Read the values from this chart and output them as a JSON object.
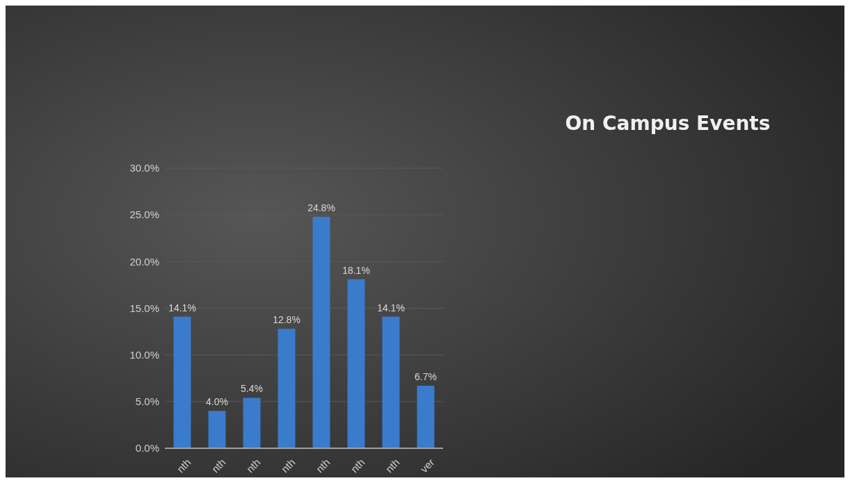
{
  "chart_data": {
    "type": "bar",
    "title": "On Campus Events",
    "categories": [
      "nth",
      "nth",
      "nth",
      "nth",
      "nth",
      "nth",
      "nth",
      "ver"
    ],
    "values": [
      14.1,
      4.0,
      5.4,
      12.8,
      24.8,
      18.1,
      14.1,
      6.7
    ],
    "value_labels": [
      "14.1%",
      "4.0%",
      "5.4%",
      "12.8%",
      "24.8%",
      "18.1%",
      "14.1%",
      "6.7%"
    ],
    "color": "#3a7bcc",
    "ylim": [
      0,
      30
    ],
    "yticks": [
      {
        "value": 0,
        "label": "0.0%"
      },
      {
        "value": 5,
        "label": "5.0%"
      },
      {
        "value": 10,
        "label": "10.0%"
      },
      {
        "value": 15,
        "label": "15.0%"
      },
      {
        "value": 20,
        "label": "20.0%"
      },
      {
        "value": 25,
        "label": "25.0%"
      },
      {
        "value": 30,
        "label": "30.0%"
      }
    ],
    "grid": "y"
  }
}
